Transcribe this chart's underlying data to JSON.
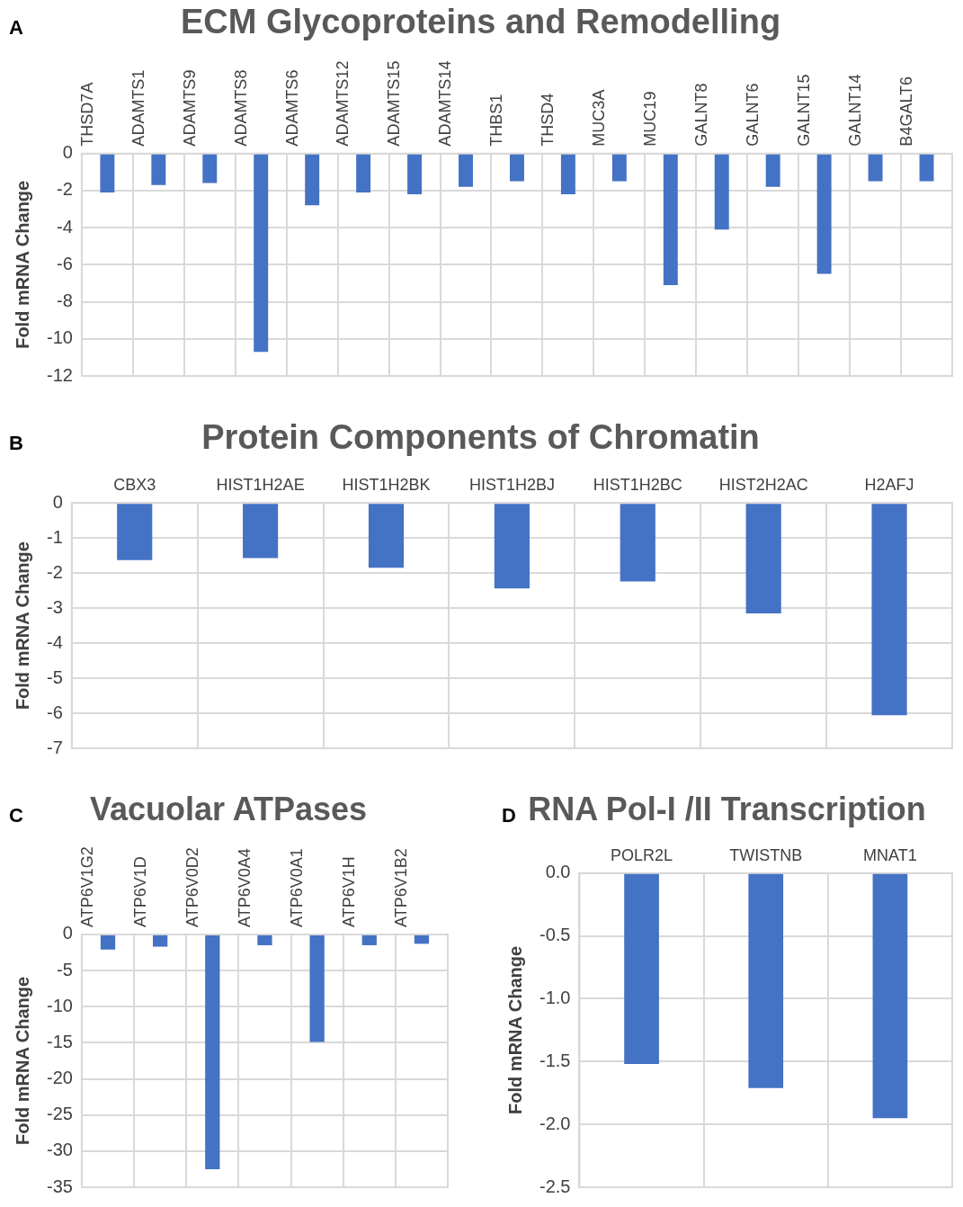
{
  "chart_data": [
    {
      "type": "bar",
      "title": "ECM Glycoproteins and Remodelling",
      "ylabel": "Fold mRNA Change",
      "annotations": [
        "A"
      ],
      "categories": [
        "THSD7A",
        "ADAMTS1",
        "ADAMTS9",
        "ADAMTS8",
        "ADAMTS6",
        "ADAMTS12",
        "ADAMTS15",
        "ADAMTS14",
        "THBS1",
        "THSD4",
        "MUC3A",
        "MUC19",
        "GALNT8",
        "GALNT6",
        "GALNT15",
        "GALNT14",
        "B4GALT6"
      ],
      "values": [
        -2.1,
        -1.7,
        -1.6,
        -10.7,
        -2.8,
        -2.1,
        -2.2,
        -1.8,
        -1.5,
        -2.2,
        -1.5,
        -7.1,
        -4.1,
        -1.8,
        -6.5,
        -1.5,
        -1.5
      ],
      "color": "#4472c4",
      "ylim": [
        -12,
        0
      ],
      "yticks": [
        -12,
        -10,
        -8,
        -6,
        -4,
        -2,
        0
      ],
      "grid": true
    },
    {
      "type": "bar",
      "title": "Protein Components of Chromatin",
      "ylabel": "Fold mRNA Change",
      "annotations": [
        "B"
      ],
      "categories": [
        "CBX3",
        "HIST1H2AE",
        "HIST1H2BK",
        "HIST1H2BJ",
        "HIST1H2BC",
        "HIST2H2AC",
        "H2AFJ"
      ],
      "values": [
        -1.63,
        -1.57,
        -1.85,
        -2.44,
        -2.24,
        -3.15,
        -6.06
      ],
      "color": "#4472c4",
      "ylim": [
        -7,
        0
      ],
      "yticks": [
        -7,
        -6,
        -5,
        -4,
        -3,
        -2,
        -1,
        0
      ],
      "grid": true
    },
    {
      "type": "bar",
      "title": "Vacuolar ATPases",
      "ylabel": "Fold mRNA Change",
      "annotations": [
        "C"
      ],
      "categories": [
        "ATP6V1G2",
        "ATP6V1D",
        "ATP6V0D2",
        "ATP6V0A4",
        "ATP6V0A1",
        "ATP6V1H",
        "ATP6V1B2"
      ],
      "values": [
        -2.1,
        -1.7,
        -32.5,
        -1.5,
        -14.9,
        -1.5,
        -1.3
      ],
      "color": "#4472c4",
      "ylim": [
        -35,
        0
      ],
      "yticks": [
        -35,
        -30,
        -25,
        -20,
        -15,
        -10,
        -5,
        0
      ],
      "grid": true
    },
    {
      "type": "bar",
      "title": "RNA Pol-I /II Transcription",
      "ylabel": "Fold mRNA Change",
      "annotations": [
        "D"
      ],
      "categories": [
        "POLR2L",
        "TWISTNB",
        "MNAT1"
      ],
      "values": [
        -1.52,
        -1.71,
        -1.95
      ],
      "color": "#4472c4",
      "ylim": [
        -2.5,
        0
      ],
      "yticks": [
        -2.5,
        {
          "value": -2,
          "label": "-2.0"
        },
        -1.5,
        {
          "value": -1,
          "label": "-1.0"
        },
        -0.5,
        {
          "value": 0,
          "label": "0.0"
        }
      ],
      "grid": true
    }
  ]
}
